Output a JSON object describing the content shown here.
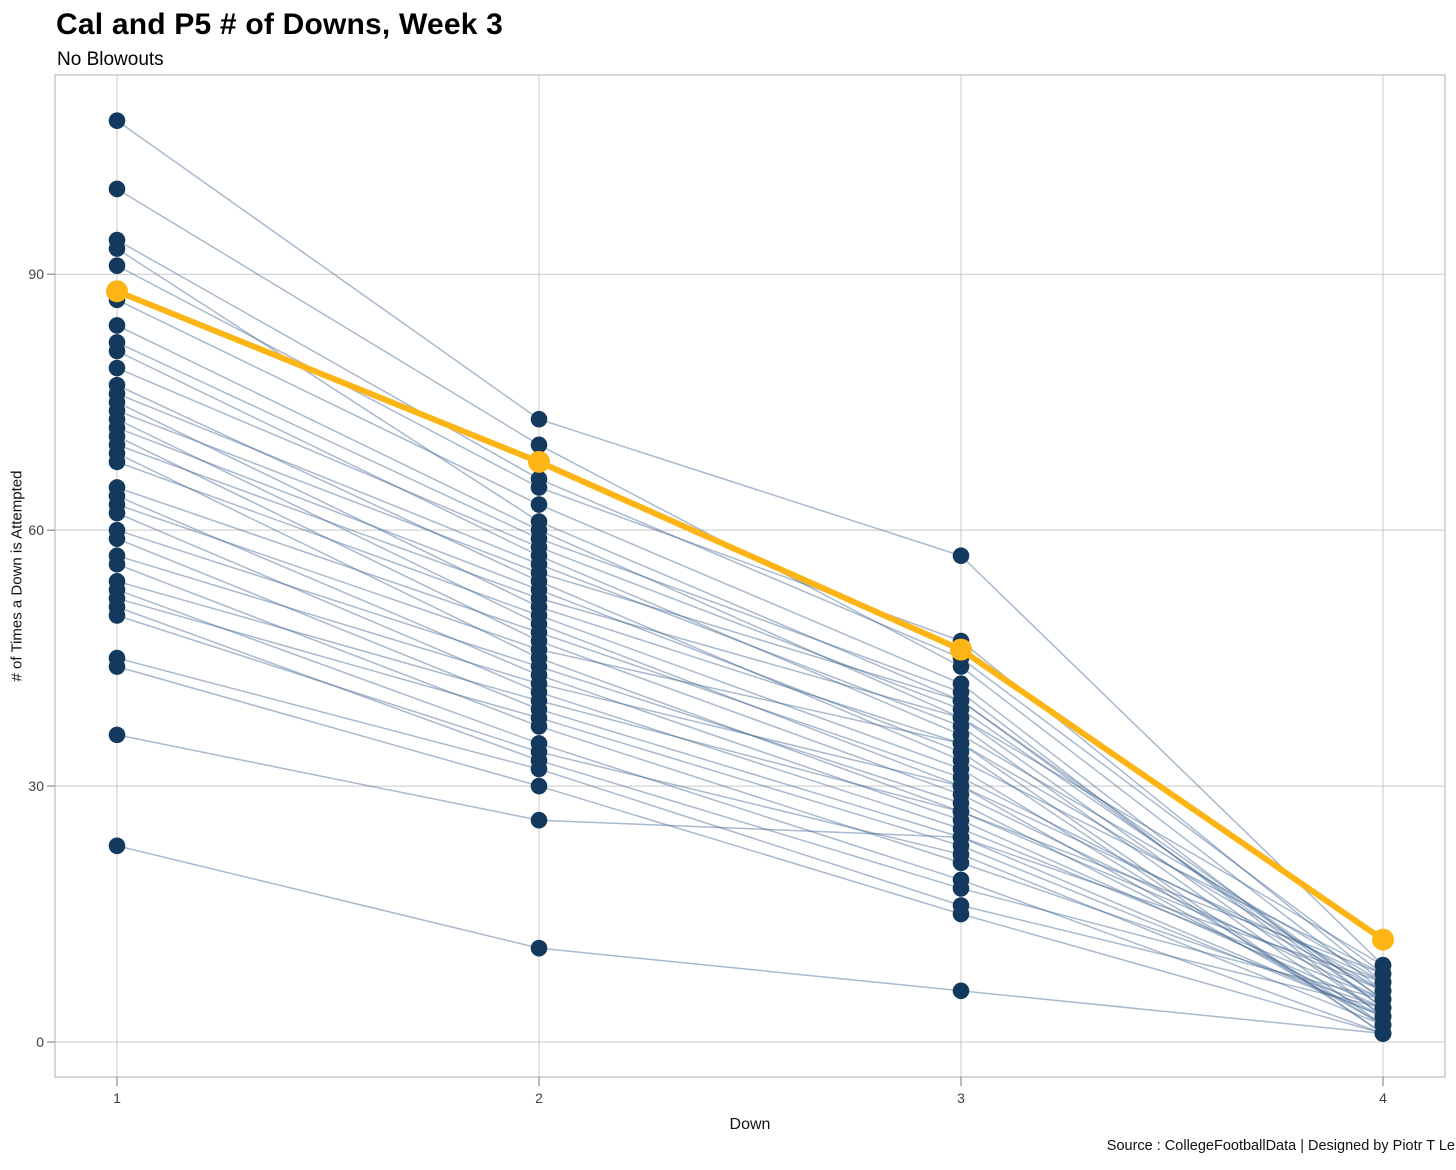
{
  "header": {
    "title": "Cal and P5 # of Downs, Week 3",
    "subtitle": "No Blowouts"
  },
  "caption": "Source : CollegeFootballData | Designed by Piotr T Le",
  "colors": {
    "cal_gold": "#FCB515",
    "point_navy": "#14395F",
    "line_blue": "#3D6390",
    "gridline": "#C9C9C9",
    "panel_border": "#BDBDBD",
    "tick_mark": "#8C8C8C",
    "background": "#FFFFFF"
  },
  "chart_data": {
    "type": "line",
    "title": "Cal and P5 # of Downs, Week 3",
    "subtitle": "No Blowouts",
    "xlabel": "Down",
    "ylabel": "# of Times a Down is Attempted",
    "x": [
      1,
      2,
      3,
      4
    ],
    "x_tick_labels": [
      "1",
      "2",
      "3",
      "4"
    ],
    "y_tick_values": [
      0,
      30,
      60,
      90
    ],
    "ylim": [
      -4,
      113
    ],
    "grid": "both",
    "legend": "none",
    "highlight_series": {
      "name": "Cal",
      "color": "#FCB515",
      "values": [
        88,
        68,
        46,
        12
      ]
    },
    "background_series_color": "#14395F",
    "background_series": [
      [
        108,
        73,
        57,
        9
      ],
      [
        100,
        70,
        44,
        6
      ],
      [
        94,
        66,
        45,
        8
      ],
      [
        93,
        61,
        40,
        5
      ],
      [
        91,
        65,
        47,
        7
      ],
      [
        87,
        63,
        42,
        4
      ],
      [
        84,
        60,
        38,
        9
      ],
      [
        82,
        59,
        41,
        3
      ],
      [
        81,
        57,
        36,
        7
      ],
      [
        79,
        58,
        39,
        5
      ],
      [
        77,
        54,
        33,
        8
      ],
      [
        76,
        56,
        37,
        2
      ],
      [
        75,
        51,
        35,
        6
      ],
      [
        74,
        55,
        40,
        4
      ],
      [
        73,
        49,
        30,
        7
      ],
      [
        72,
        53,
        34,
        1
      ],
      [
        71,
        47,
        29,
        5
      ],
      [
        70,
        52,
        38,
        3
      ],
      [
        69,
        45,
        27,
        8
      ],
      [
        68,
        50,
        32,
        2
      ],
      [
        65,
        48,
        31,
        6
      ],
      [
        64,
        43,
        26,
        4
      ],
      [
        63,
        46,
        35,
        1
      ],
      [
        62,
        41,
        25,
        5
      ],
      [
        60,
        44,
        28,
        3
      ],
      [
        59,
        39,
        24,
        7
      ],
      [
        57,
        42,
        30,
        2
      ],
      [
        56,
        37,
        21,
        4
      ],
      [
        54,
        40,
        27,
        6
      ],
      [
        53,
        35,
        19,
        1
      ],
      [
        52,
        38,
        23,
        3
      ],
      [
        51,
        33,
        18,
        5
      ],
      [
        50,
        34,
        22,
        2
      ],
      [
        45,
        32,
        16,
        4
      ],
      [
        44,
        30,
        15,
        1
      ],
      [
        36,
        26,
        24,
        3
      ],
      [
        23,
        11,
        6,
        1
      ]
    ]
  }
}
